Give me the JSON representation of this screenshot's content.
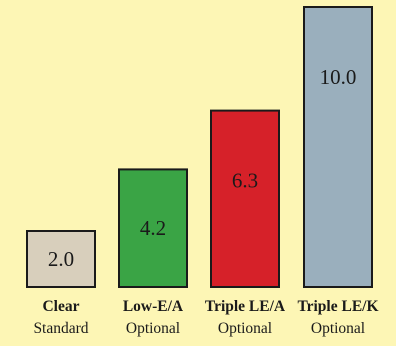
{
  "chart_data": {
    "type": "bar",
    "categories": [
      "Clear",
      "Low-E/A",
      "Triple LE/A",
      "Triple LE/K"
    ],
    "subcategories": [
      "Standard",
      "Optional",
      "Optional",
      "Optional"
    ],
    "values": [
      2.0,
      4.2,
      6.3,
      10.0
    ],
    "value_labels": [
      "2.0",
      "4.2",
      "6.3",
      "10.0"
    ],
    "bar_colors": [
      "#d8cfbc",
      "#3aa445",
      "#d62129",
      "#9aafbd"
    ],
    "background_color": "#fdf6b5",
    "title": "",
    "xlabel": "",
    "ylabel": "",
    "ylim": [
      0,
      10.0
    ],
    "grid": false
  }
}
